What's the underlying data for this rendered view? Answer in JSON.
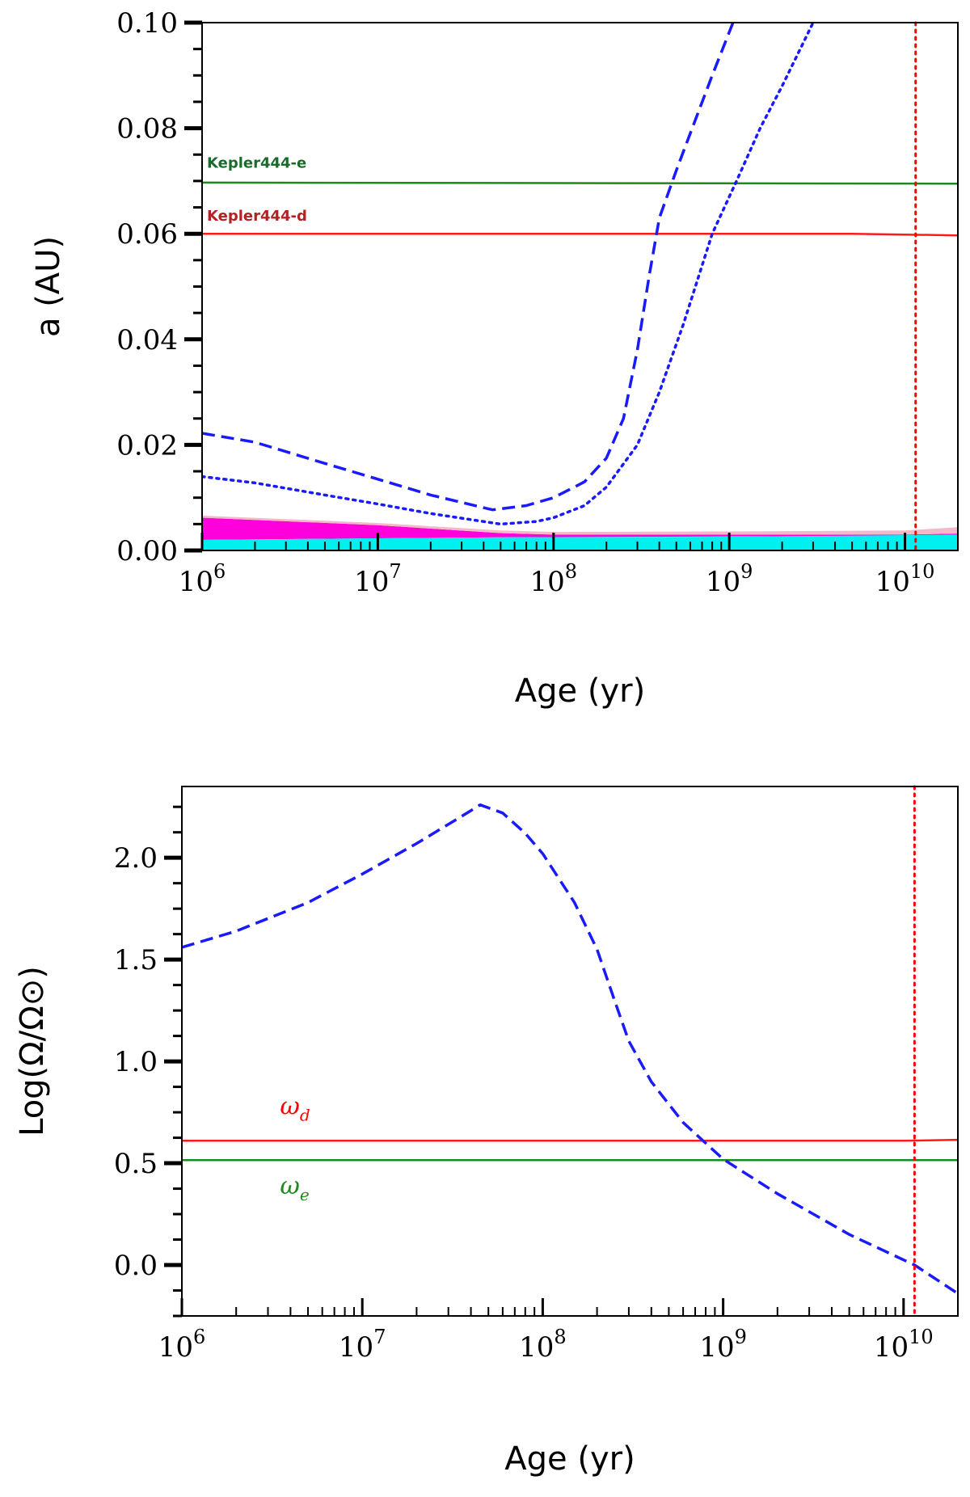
{
  "chart_data": [
    {
      "type": "line",
      "panel": "top",
      "xlabel": "Age (yr)",
      "ylabel": "a (AU)",
      "xscale": "log",
      "xlim": [
        1000000,
        20000000000
      ],
      "ylim": [
        0,
        0.1
      ],
      "x_ticks": [
        {
          "value": 1000000,
          "base": "10",
          "exp": "6"
        },
        {
          "value": 10000000,
          "base": "10",
          "exp": "7"
        },
        {
          "value": 100000000,
          "base": "10",
          "exp": "8"
        },
        {
          "value": 1000000000,
          "base": "10",
          "exp": "9"
        },
        {
          "value": 10000000000,
          "base": "10",
          "exp": "10"
        }
      ],
      "y_ticks": [
        {
          "value": 0.0,
          "label": "0.00"
        },
        {
          "value": 0.02,
          "label": "0.02"
        },
        {
          "value": 0.04,
          "label": "0.04"
        },
        {
          "value": 0.06,
          "label": "0.06"
        },
        {
          "value": 0.08,
          "label": "0.08"
        },
        {
          "value": 0.1,
          "label": "0.10"
        }
      ],
      "planet_labels": [
        {
          "text": "Kepler444-e",
          "color": "#1a6b2a",
          "y": 0.0725
        },
        {
          "text": "Kepler444-d",
          "color": "#b22222",
          "y": 0.0625
        }
      ],
      "series": [
        {
          "name": "Kepler444-e",
          "color": "#1a8a1a",
          "style": "solid",
          "points": [
            [
              1000000,
              0.0697
            ],
            [
              20000000000,
              0.0695
            ]
          ]
        },
        {
          "name": "Kepler444-d",
          "color": "#ff1a1a",
          "style": "solid",
          "points": [
            [
              1000000,
              0.06
            ],
            [
              5000000000,
              0.06
            ],
            [
              20000000000,
              0.0597
            ]
          ]
        },
        {
          "name": "corotation-dashed",
          "color": "#1a1aff",
          "style": "dashed",
          "points": [
            [
              1000000,
              0.0222
            ],
            [
              2000000,
              0.0205
            ],
            [
              5000000,
              0.0165
            ],
            [
              10000000,
              0.0135
            ],
            [
              20000000,
              0.0105
            ],
            [
              45000000,
              0.0077
            ],
            [
              70000000,
              0.0085
            ],
            [
              100000000,
              0.01
            ],
            [
              150000000,
              0.013
            ],
            [
              200000000,
              0.0175
            ],
            [
              250000000,
              0.025
            ],
            [
              300000000,
              0.038
            ],
            [
              350000000,
              0.052
            ],
            [
              400000000,
              0.063
            ],
            [
              500000000,
              0.072
            ],
            [
              600000000,
              0.079
            ],
            [
              800000000,
              0.09
            ],
            [
              1050000000,
              0.1
            ]
          ]
        },
        {
          "name": "corotation-dotted",
          "color": "#1a1aff",
          "style": "dotted",
          "points": [
            [
              1000000,
              0.014
            ],
            [
              2000000,
              0.0128
            ],
            [
              5000000,
              0.0105
            ],
            [
              10000000,
              0.0088
            ],
            [
              20000000,
              0.007
            ],
            [
              50000000,
              0.005
            ],
            [
              80000000,
              0.0055
            ],
            [
              100000000,
              0.0062
            ],
            [
              150000000,
              0.0085
            ],
            [
              200000000,
              0.012
            ],
            [
              300000000,
              0.02
            ],
            [
              400000000,
              0.03
            ],
            [
              550000000,
              0.043
            ],
            [
              800000000,
              0.06
            ],
            [
              1100000000,
              0.07
            ],
            [
              1500000000,
              0.08
            ],
            [
              2000000000,
              0.088
            ],
            [
              3000000000,
              0.1
            ]
          ]
        }
      ],
      "bands": [
        {
          "name": "magenta-zone",
          "color": "#ff00dd",
          "lower": [
            [
              1000000,
              0.002
            ],
            [
              50000000,
              0.0025
            ],
            [
              20000000000,
              0.0028
            ]
          ],
          "upper": [
            [
              1000000,
              0.0062
            ],
            [
              10000000,
              0.0048
            ],
            [
              50000000,
              0.0033
            ],
            [
              100000000,
              0.003
            ],
            [
              1000000000,
              0.003
            ],
            [
              10000000000,
              0.003
            ],
            [
              20000000000,
              0.0032
            ]
          ]
        },
        {
          "name": "pink-zone",
          "color": "#f5b8c8",
          "lower": [
            [
              1000000,
              0.0062
            ],
            [
              10000000,
              0.0048
            ],
            [
              50000000,
              0.0033
            ],
            [
              100000000,
              0.003
            ],
            [
              1000000000,
              0.003
            ],
            [
              10000000000,
              0.003
            ],
            [
              20000000000,
              0.0032
            ]
          ],
          "upper": [
            [
              1000000,
              0.0066
            ],
            [
              10000000,
              0.0052
            ],
            [
              50000000,
              0.0038
            ],
            [
              100000000,
              0.0035
            ],
            [
              1000000000,
              0.0036
            ],
            [
              10000000000,
              0.0038
            ],
            [
              20000000000,
              0.0044
            ]
          ]
        },
        {
          "name": "cyan-zone",
          "color": "#00f0f0",
          "lower": [
            [
              1000000,
              0.0
            ],
            [
              20000000000,
              0.0
            ]
          ],
          "upper": [
            [
              1000000,
              0.002
            ],
            [
              50000000,
              0.0025
            ],
            [
              1000000000,
              0.0026
            ],
            [
              20000000000,
              0.003
            ]
          ]
        }
      ],
      "vline": {
        "x": 11500000000,
        "color": "#ff0000",
        "style": "dotted"
      }
    },
    {
      "type": "line",
      "panel": "bottom",
      "xlabel": "Age (yr)",
      "ylabel": "Log(Ω/Ω⊙)",
      "xscale": "log",
      "xlim": [
        1000000,
        20000000000
      ],
      "ylim": [
        -0.25,
        2.35
      ],
      "x_ticks": [
        {
          "value": 1000000,
          "base": "10",
          "exp": "6"
        },
        {
          "value": 10000000,
          "base": "10",
          "exp": "7"
        },
        {
          "value": 100000000,
          "base": "10",
          "exp": "8"
        },
        {
          "value": 1000000000,
          "base": "10",
          "exp": "9"
        },
        {
          "value": 10000000000,
          "base": "10",
          "exp": "10"
        }
      ],
      "y_ticks": [
        {
          "value": 0.0,
          "label": "0.0"
        },
        {
          "value": 0.5,
          "label": "0.5"
        },
        {
          "value": 1.0,
          "label": "1.0"
        },
        {
          "value": 1.5,
          "label": "1.5"
        },
        {
          "value": 2.0,
          "label": "2.0"
        }
      ],
      "omega_labels": [
        {
          "symbol": "ω",
          "sub": "d",
          "color": "#ff0000",
          "y": 0.74,
          "x": 3500000
        },
        {
          "symbol": "ω",
          "sub": "e",
          "color": "#1a8a1a",
          "y": 0.35,
          "x": 3500000
        }
      ],
      "series": [
        {
          "name": "ω_d",
          "color": "#ff1a1a",
          "style": "solid",
          "points": [
            [
              1000000,
              0.61
            ],
            [
              10000000000,
              0.61
            ],
            [
              20000000000,
              0.615
            ]
          ]
        },
        {
          "name": "ω_e",
          "color": "#1a8a1a",
          "style": "solid",
          "points": [
            [
              1000000,
              0.515
            ],
            [
              20000000000,
              0.515
            ]
          ]
        },
        {
          "name": "star-rotation",
          "color": "#1a1aff",
          "style": "dashed",
          "points": [
            [
              1000000,
              1.56
            ],
            [
              2000000,
              1.64
            ],
            [
              5000000,
              1.78
            ],
            [
              10000000,
              1.92
            ],
            [
              20000000,
              2.07
            ],
            [
              35000000,
              2.2
            ],
            [
              45000000,
              2.26
            ],
            [
              60000000,
              2.22
            ],
            [
              80000000,
              2.12
            ],
            [
              100000000,
              2.02
            ],
            [
              150000000,
              1.78
            ],
            [
              200000000,
              1.55
            ],
            [
              250000000,
              1.3
            ],
            [
              300000000,
              1.1
            ],
            [
              400000000,
              0.9
            ],
            [
              600000000,
              0.7
            ],
            [
              1000000000,
              0.52
            ],
            [
              2000000000,
              0.35
            ],
            [
              5000000000,
              0.15
            ],
            [
              11500000000,
              0.0
            ],
            [
              20000000000,
              -0.14
            ]
          ]
        }
      ],
      "vline": {
        "x": 11500000000,
        "color": "#ff0000",
        "style": "dotted"
      }
    }
  ]
}
